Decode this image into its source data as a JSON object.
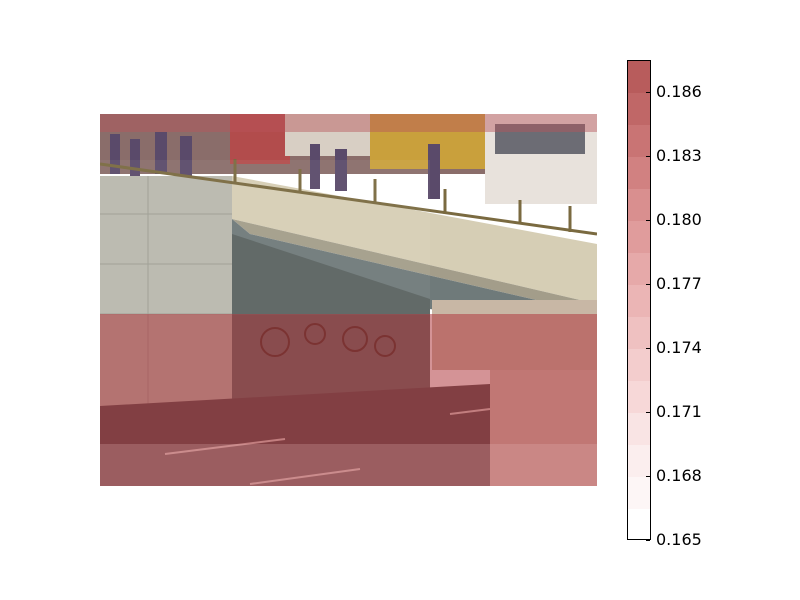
{
  "image": {
    "scene": "highway-underpass-with-overhead-bridge",
    "overlay": {
      "upper_region_value": 0.186,
      "lower_region_value": 0.1845,
      "color_top": "#c8494e",
      "color_bottom": "#f7d8d8"
    }
  },
  "colorbar": {
    "min": 0.165,
    "max": 0.1875,
    "levels": 15,
    "colors": [
      "#ffffff",
      "#fdf6f6",
      "#fbeeee",
      "#f9e4e4",
      "#f7d8d8",
      "#f3cdcd",
      "#efc1c1",
      "#ebb5b5",
      "#e6a9a9",
      "#e09c9c",
      "#d98f8f",
      "#d18181",
      "#c97474",
      "#c06767",
      "#b85c5c"
    ],
    "ticks": [
      "0.165",
      "0.168",
      "0.171",
      "0.174",
      "0.177",
      "0.180",
      "0.183",
      "0.186"
    ],
    "tick_values": [
      0.165,
      0.168,
      0.171,
      0.174,
      0.177,
      0.18,
      0.183,
      0.186
    ]
  }
}
